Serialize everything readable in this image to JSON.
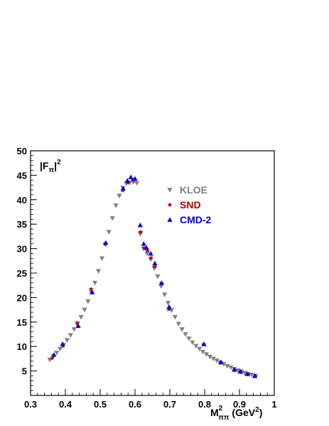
{
  "chart_data": {
    "type": "scatter",
    "title": "",
    "ylabel": "|F",
    "ylabel_sub": "π",
    "ylabel_post": "|",
    "ylabel_sup": "2",
    "xlabel": "M",
    "xlabel_sup": "2",
    "xlabel_sub": "ππ",
    "xlabel_unit": " (GeV",
    "xlabel_unit_sup": "2",
    "xlabel_unit_post": ")",
    "xlim": [
      0.3,
      1.0
    ],
    "ylim": [
      0,
      50
    ],
    "x_ticks": [
      "0.3",
      "0.4",
      "0.5",
      "0.6",
      "0.7",
      "0.8",
      "0.9",
      "1"
    ],
    "y_ticks": [
      "5",
      "10",
      "15",
      "20",
      "25",
      "30",
      "35",
      "40",
      "45",
      "50"
    ],
    "grid": false,
    "legend_position": "top-right",
    "series": [
      {
        "name": "KLOE",
        "marker": "triangle-down",
        "color": "#808080",
        "points": [
          [
            0.355,
            7.3
          ],
          [
            0.365,
            8.0
          ],
          [
            0.375,
            8.7
          ],
          [
            0.385,
            9.5
          ],
          [
            0.395,
            10.3
          ],
          [
            0.405,
            11.3
          ],
          [
            0.415,
            12.3
          ],
          [
            0.425,
            13.5
          ],
          [
            0.435,
            14.7
          ],
          [
            0.445,
            16.0
          ],
          [
            0.455,
            17.5
          ],
          [
            0.465,
            19.2
          ],
          [
            0.475,
            21.0
          ],
          [
            0.485,
            23.0
          ],
          [
            0.495,
            25.4
          ],
          [
            0.505,
            28.0
          ],
          [
            0.515,
            30.8
          ],
          [
            0.525,
            33.4
          ],
          [
            0.535,
            36.2
          ],
          [
            0.545,
            38.8
          ],
          [
            0.555,
            40.8
          ],
          [
            0.565,
            42.4
          ],
          [
            0.575,
            43.3
          ],
          [
            0.585,
            43.5
          ],
          [
            0.595,
            43.6
          ],
          [
            0.605,
            43.4
          ],
          [
            0.615,
            33.0
          ],
          [
            0.625,
            30.0
          ],
          [
            0.635,
            29.0
          ],
          [
            0.645,
            27.8
          ],
          [
            0.655,
            26.0
          ],
          [
            0.665,
            24.3
          ],
          [
            0.675,
            22.3
          ],
          [
            0.685,
            20.6
          ],
          [
            0.695,
            18.9
          ],
          [
            0.705,
            17.4
          ],
          [
            0.715,
            16.0
          ],
          [
            0.725,
            14.6
          ],
          [
            0.735,
            13.5
          ],
          [
            0.745,
            12.5
          ],
          [
            0.755,
            11.6
          ],
          [
            0.765,
            10.8
          ],
          [
            0.775,
            10.1
          ],
          [
            0.785,
            9.5
          ],
          [
            0.795,
            8.9
          ],
          [
            0.805,
            8.4
          ],
          [
            0.815,
            7.9
          ],
          [
            0.825,
            7.5
          ],
          [
            0.835,
            7.1
          ],
          [
            0.845,
            6.7
          ],
          [
            0.855,
            6.4
          ],
          [
            0.865,
            6.0
          ],
          [
            0.875,
            5.7
          ],
          [
            0.885,
            5.4
          ],
          [
            0.895,
            5.1
          ],
          [
            0.905,
            4.9
          ],
          [
            0.915,
            4.6
          ],
          [
            0.925,
            4.4
          ],
          [
            0.935,
            4.2
          ],
          [
            0.945,
            4.0
          ]
        ]
      },
      {
        "name": "SND",
        "marker": "star",
        "color": "#b40000",
        "points": [
          [
            0.362,
            7.6
          ],
          [
            0.393,
            10.1
          ],
          [
            0.434,
            14.7
          ],
          [
            0.474,
            21.7
          ],
          [
            0.514,
            31.0
          ],
          [
            0.565,
            41.9
          ],
          [
            0.58,
            43.5
          ],
          [
            0.595,
            44.0
          ],
          [
            0.616,
            33.4
          ],
          [
            0.626,
            30.1
          ],
          [
            0.636,
            29.6
          ],
          [
            0.646,
            28.1
          ],
          [
            0.657,
            26.3
          ],
          [
            0.677,
            22.9
          ],
          [
            0.697,
            17.6
          ],
          [
            0.797,
            10.4
          ],
          [
            0.847,
            6.7
          ],
          [
            0.886,
            5.1
          ],
          [
            0.905,
            4.7
          ],
          [
            0.926,
            4.3
          ],
          [
            0.946,
            3.9
          ]
        ]
      },
      {
        "name": "CMD-2",
        "marker": "triangle-up",
        "color": "#0000e0",
        "points": [
          [
            0.367,
            8.3
          ],
          [
            0.392,
            10.5
          ],
          [
            0.437,
            14.2
          ],
          [
            0.477,
            21.1
          ],
          [
            0.516,
            31.2
          ],
          [
            0.566,
            42.3
          ],
          [
            0.578,
            43.9
          ],
          [
            0.588,
            44.6
          ],
          [
            0.6,
            44.3
          ],
          [
            0.615,
            34.8
          ],
          [
            0.625,
            31.0
          ],
          [
            0.633,
            30.2
          ],
          [
            0.645,
            29.0
          ],
          [
            0.657,
            27.0
          ],
          [
            0.676,
            23.0
          ],
          [
            0.698,
            18.1
          ],
          [
            0.798,
            10.5
          ],
          [
            0.846,
            6.8
          ],
          [
            0.885,
            5.3
          ],
          [
            0.902,
            4.9
          ],
          [
            0.922,
            4.4
          ],
          [
            0.944,
            4.0
          ]
        ]
      }
    ]
  }
}
